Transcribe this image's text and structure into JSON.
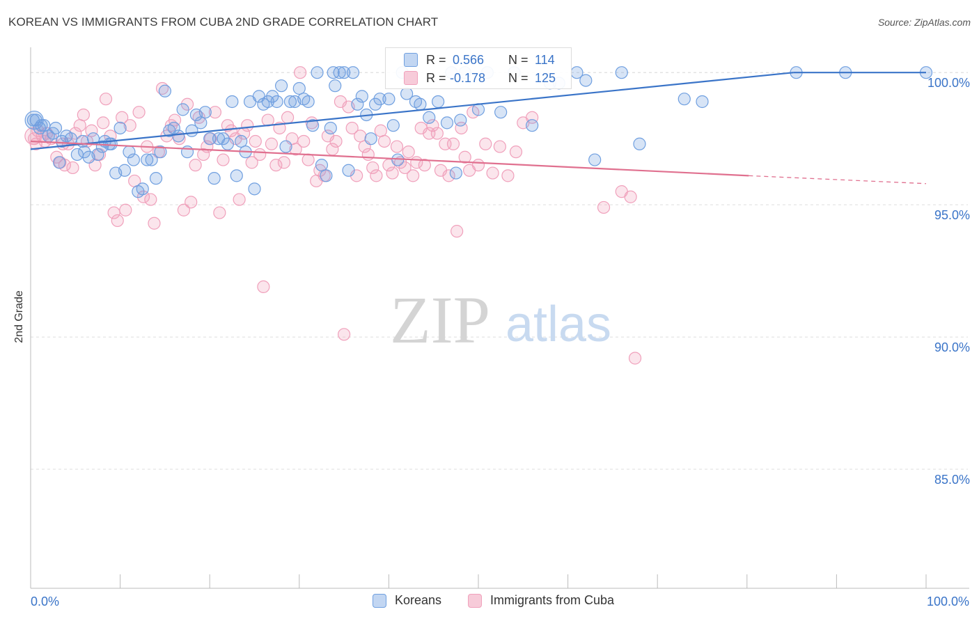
{
  "title": "KOREAN VS IMMIGRANTS FROM CUBA 2ND GRADE CORRELATION CHART",
  "source": "Source: ZipAtlas.com",
  "watermark": {
    "zip": "ZIP",
    "atlas": "atlas"
  },
  "colors": {
    "blue": "#6f9fe0",
    "blue_line": "#3a74c8",
    "pink": "#f0a0bb",
    "pink_line": "#e0708f",
    "grid": "#dddddd",
    "tick_label": "#3a74c8"
  },
  "legend_top": {
    "rows": [
      {
        "r_label": "R =",
        "r_value": "0.566",
        "n_label": "N =",
        "n_value": "114"
      },
      {
        "r_label": "R =",
        "r_value": "-0.178",
        "n_label": "N =",
        "n_value": "125"
      }
    ]
  },
  "chart_data": {
    "type": "scatter",
    "title": "KOREAN VS IMMIGRANTS FROM CUBA 2ND GRADE CORRELATION CHART",
    "xlabel": "",
    "ylabel": "2nd Grade",
    "xlim": [
      0,
      100
    ],
    "ylim": [
      80.5,
      100.9
    ],
    "x_tick_labels": [
      "0.0%",
      "100.0%"
    ],
    "y_ticks": [
      85,
      90,
      95,
      100
    ],
    "y_tick_labels": [
      "85.0%",
      "90.0%",
      "95.0%",
      "100.0%"
    ],
    "grid": true,
    "legend": "bottom-center",
    "series": [
      {
        "name": "Koreans",
        "color": "#6f9fe0",
        "trend": {
          "x": [
            0,
            85.2
          ],
          "y": [
            97.1,
            100.0
          ]
        },
        "points": [
          [
            0.6,
            98.2
          ],
          [
            1.0,
            97.9
          ],
          [
            1.5,
            98.0
          ],
          [
            2.0,
            97.6
          ],
          [
            2.5,
            97.7
          ],
          [
            3.2,
            96.6
          ],
          [
            3.5,
            97.4
          ],
          [
            4.0,
            97.6
          ],
          [
            5.2,
            96.9
          ],
          [
            5.8,
            97.4
          ],
          [
            6.5,
            96.8
          ],
          [
            7.0,
            97.5
          ],
          [
            7.5,
            96.9
          ],
          [
            8.0,
            97.2
          ],
          [
            8.3,
            97.4
          ],
          [
            8.8,
            97.3
          ],
          [
            9.5,
            96.2
          ],
          [
            10.0,
            97.9
          ],
          [
            10.5,
            96.3
          ],
          [
            11.0,
            97.0
          ],
          [
            11.5,
            96.7
          ],
          [
            12.0,
            95.5
          ],
          [
            12.5,
            95.6
          ],
          [
            13.0,
            96.7
          ],
          [
            13.5,
            96.7
          ],
          [
            14.0,
            96.0
          ],
          [
            14.5,
            97.0
          ],
          [
            15.0,
            99.3
          ],
          [
            15.5,
            97.8
          ],
          [
            16.0,
            97.9
          ],
          [
            16.5,
            97.6
          ],
          [
            17.0,
            98.6
          ],
          [
            17.5,
            97.0
          ],
          [
            18.0,
            97.8
          ],
          [
            18.5,
            98.4
          ],
          [
            19.0,
            98.1
          ],
          [
            19.5,
            98.5
          ],
          [
            20.0,
            97.5
          ],
          [
            20.5,
            96.0
          ],
          [
            21.0,
            97.5
          ],
          [
            21.5,
            97.5
          ],
          [
            22.0,
            97.3
          ],
          [
            22.5,
            98.9
          ],
          [
            23.0,
            96.1
          ],
          [
            23.5,
            97.4
          ],
          [
            24.0,
            97.0
          ],
          [
            24.5,
            98.9
          ],
          [
            25.0,
            95.6
          ],
          [
            25.5,
            99.1
          ],
          [
            26.0,
            98.8
          ],
          [
            26.5,
            98.9
          ],
          [
            27.0,
            99.1
          ],
          [
            27.5,
            98.9
          ],
          [
            28.0,
            99.5
          ],
          [
            28.5,
            97.2
          ],
          [
            29.0,
            98.9
          ],
          [
            29.5,
            98.9
          ],
          [
            30.0,
            99.4
          ],
          [
            30.5,
            99.0
          ],
          [
            31.0,
            98.9
          ],
          [
            31.5,
            98.0
          ],
          [
            32.0,
            100.0
          ],
          [
            32.5,
            96.5
          ],
          [
            33.0,
            96.1
          ],
          [
            33.5,
            97.9
          ],
          [
            34.0,
            99.5
          ],
          [
            34.5,
            100.0
          ],
          [
            35.0,
            100.0
          ],
          [
            35.5,
            96.3
          ],
          [
            36.0,
            100.0
          ],
          [
            36.5,
            98.8
          ],
          [
            37.0,
            99.1
          ],
          [
            37.5,
            98.4
          ],
          [
            38.0,
            97.5
          ],
          [
            38.5,
            98.8
          ],
          [
            39.0,
            99.0
          ],
          [
            40.0,
            99.0
          ],
          [
            40.5,
            98.0
          ],
          [
            41.0,
            96.7
          ],
          [
            41.5,
            100.0
          ],
          [
            42.0,
            99.2
          ],
          [
            43.0,
            98.9
          ],
          [
            43.5,
            98.8
          ],
          [
            44.5,
            98.3
          ],
          [
            45.5,
            98.9
          ],
          [
            46.5,
            98.1
          ],
          [
            47.0,
            100.0
          ],
          [
            47.5,
            96.2
          ],
          [
            48.0,
            98.2
          ],
          [
            48.5,
            100.0
          ],
          [
            50.0,
            98.6
          ],
          [
            51.0,
            100.0
          ],
          [
            52.5,
            98.5
          ],
          [
            54.0,
            100.0
          ],
          [
            56.0,
            98.0
          ],
          [
            58.0,
            99.6
          ],
          [
            59.0,
            99.6
          ],
          [
            61.0,
            100.0
          ],
          [
            62.0,
            99.7
          ],
          [
            63.0,
            96.7
          ],
          [
            66.0,
            100.0
          ],
          [
            68.0,
            97.3
          ],
          [
            73.0,
            99.0
          ],
          [
            75.0,
            98.9
          ],
          [
            85.5,
            100.0
          ],
          [
            91.0,
            100.0
          ],
          [
            100.0,
            100.0
          ],
          [
            0.3,
            98.2
          ],
          [
            1.2,
            98.0
          ],
          [
            2.8,
            97.9
          ],
          [
            4.5,
            97.5
          ],
          [
            6.0,
            97.0
          ],
          [
            9.0,
            97.3
          ],
          [
            33.8,
            100.0
          ]
        ]
      },
      {
        "name": "Immigrants from Cuba",
        "color": "#f0a0bb",
        "trend": {
          "x": [
            0,
            80.2
          ],
          "y": [
            97.4,
            96.1
          ]
        },
        "trend_dashed": {
          "x": [
            80.2,
            100
          ],
          "y": [
            96.1,
            95.8
          ]
        },
        "points": [
          [
            0.4,
            97.5
          ],
          [
            0.8,
            97.8
          ],
          [
            1.3,
            97.6
          ],
          [
            1.8,
            97.7
          ],
          [
            2.3,
            97.5
          ],
          [
            2.9,
            96.8
          ],
          [
            3.3,
            96.6
          ],
          [
            3.8,
            96.5
          ],
          [
            4.2,
            97.3
          ],
          [
            4.7,
            96.4
          ],
          [
            5.0,
            97.7
          ],
          [
            5.5,
            98.0
          ],
          [
            5.9,
            98.4
          ],
          [
            6.3,
            97.4
          ],
          [
            6.8,
            97.8
          ],
          [
            7.2,
            96.5
          ],
          [
            7.7,
            96.9
          ],
          [
            8.1,
            98.1
          ],
          [
            8.4,
            99.0
          ],
          [
            8.9,
            97.6
          ],
          [
            9.3,
            94.7
          ],
          [
            9.7,
            94.4
          ],
          [
            10.2,
            98.3
          ],
          [
            10.6,
            94.8
          ],
          [
            11.1,
            98.0
          ],
          [
            11.6,
            95.9
          ],
          [
            12.1,
            98.5
          ],
          [
            12.6,
            95.3
          ],
          [
            13.0,
            97.2
          ],
          [
            13.4,
            95.2
          ],
          [
            13.8,
            94.3
          ],
          [
            14.3,
            97.0
          ],
          [
            14.7,
            99.4
          ],
          [
            15.2,
            97.6
          ],
          [
            15.7,
            98.0
          ],
          [
            16.1,
            98.2
          ],
          [
            16.6,
            97.5
          ],
          [
            17.1,
            94.8
          ],
          [
            17.5,
            98.8
          ],
          [
            17.9,
            95.1
          ],
          [
            18.4,
            96.5
          ],
          [
            18.8,
            98.3
          ],
          [
            19.3,
            96.9
          ],
          [
            19.7,
            97.2
          ],
          [
            20.1,
            97.5
          ],
          [
            20.6,
            98.5
          ],
          [
            21.1,
            94.7
          ],
          [
            21.5,
            96.7
          ],
          [
            22.0,
            98.0
          ],
          [
            22.4,
            97.8
          ],
          [
            22.9,
            97.5
          ],
          [
            23.3,
            95.2
          ],
          [
            23.8,
            97.7
          ],
          [
            24.2,
            98.0
          ],
          [
            24.7,
            96.6
          ],
          [
            25.1,
            97.4
          ],
          [
            25.6,
            96.9
          ],
          [
            26.0,
            91.9
          ],
          [
            26.5,
            98.2
          ],
          [
            26.9,
            97.3
          ],
          [
            27.4,
            96.5
          ],
          [
            27.8,
            97.9
          ],
          [
            28.3,
            96.6
          ],
          [
            28.7,
            98.3
          ],
          [
            29.2,
            97.5
          ],
          [
            29.6,
            97.1
          ],
          [
            30.1,
            100.0
          ],
          [
            30.5,
            97.4
          ],
          [
            31.0,
            96.7
          ],
          [
            31.4,
            98.1
          ],
          [
            31.9,
            95.9
          ],
          [
            32.3,
            96.3
          ],
          [
            32.8,
            96.1
          ],
          [
            33.2,
            97.6
          ],
          [
            33.7,
            97.1
          ],
          [
            34.1,
            97.4
          ],
          [
            34.6,
            98.9
          ],
          [
            35.0,
            90.1
          ],
          [
            35.5,
            98.7
          ],
          [
            35.9,
            97.9
          ],
          [
            36.4,
            96.1
          ],
          [
            36.8,
            97.6
          ],
          [
            37.3,
            97.2
          ],
          [
            37.7,
            96.9
          ],
          [
            38.2,
            96.4
          ],
          [
            38.6,
            96.1
          ],
          [
            39.1,
            97.8
          ],
          [
            39.5,
            97.4
          ],
          [
            40.0,
            96.5
          ],
          [
            40.4,
            96.2
          ],
          [
            40.9,
            97.2
          ],
          [
            41.3,
            96.6
          ],
          [
            41.8,
            96.4
          ],
          [
            42.2,
            97.0
          ],
          [
            42.7,
            96.1
          ],
          [
            43.1,
            96.6
          ],
          [
            43.6,
            97.9
          ],
          [
            44.0,
            96.5
          ],
          [
            44.5,
            97.7
          ],
          [
            44.9,
            98.0
          ],
          [
            45.4,
            97.7
          ],
          [
            45.8,
            96.3
          ],
          [
            46.3,
            97.3
          ],
          [
            46.7,
            96.1
          ],
          [
            47.2,
            97.3
          ],
          [
            47.6,
            94.0
          ],
          [
            48.1,
            97.9
          ],
          [
            48.5,
            96.8
          ],
          [
            49.0,
            96.3
          ],
          [
            49.4,
            98.5
          ],
          [
            50.0,
            96.5
          ],
          [
            50.8,
            97.3
          ],
          [
            51.6,
            96.2
          ],
          [
            52.4,
            97.2
          ],
          [
            53.3,
            96.1
          ],
          [
            54.2,
            97.0
          ],
          [
            55.0,
            98.1
          ],
          [
            56.0,
            98.3
          ],
          [
            64.0,
            94.9
          ],
          [
            66.0,
            95.5
          ],
          [
            67.0,
            95.3
          ],
          [
            67.5,
            89.2
          ],
          [
            0.6,
            97.3
          ],
          [
            1.6,
            97.4
          ],
          [
            3.6,
            97.3
          ]
        ]
      }
    ]
  },
  "legend_bottom": {
    "items": [
      "Koreans",
      "Immigrants from Cuba"
    ]
  }
}
